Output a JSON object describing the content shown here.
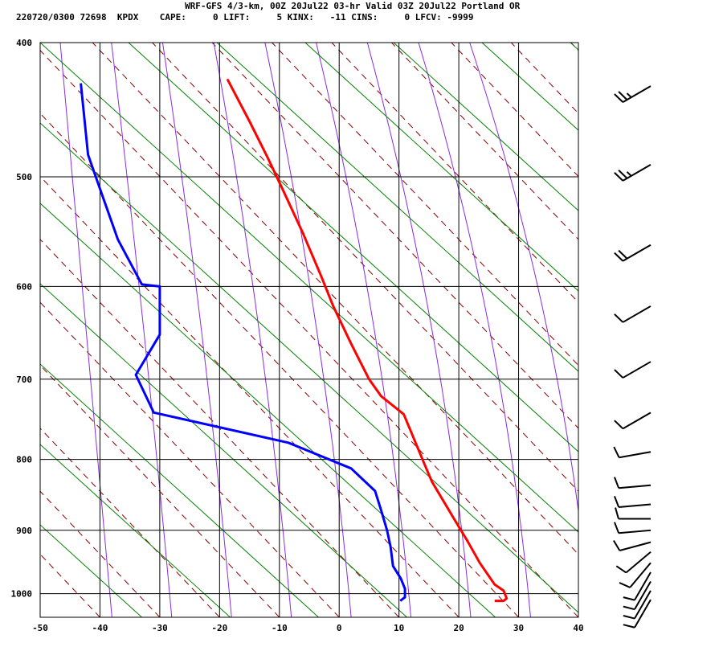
{
  "header": {
    "title": "WRF-GFS 4/3-km, 00Z 20Jul22 03-hr Valid 03Z 20Jul22 Portland OR",
    "indices": "220720/0300 72698  KPDX    CAPE:     0 LIFT:     5 KINX:   -11 CINS:     0 LFCV: -9999"
  },
  "chart_data": {
    "type": "line",
    "title": "WRF-GFS 4/3-km, 00Z 20Jul22 03-hr Valid 03Z 20Jul22 Portland OR",
    "xlabel": "",
    "ylabel": "",
    "x_ticks": [
      "-50",
      "-40",
      "-30",
      "-20",
      "-10",
      "0",
      "10",
      "20",
      "30",
      "40"
    ],
    "y_ticks": [
      "400",
      "500",
      "600",
      "700",
      "800",
      "900",
      "1000"
    ],
    "xlim": [
      -50,
      40
    ],
    "ylim_pressure": [
      1040,
      400
    ],
    "grid": true,
    "series": [
      {
        "color": "#ff0000",
        "points": [
          [
            -18.7,
            425
          ],
          [
            -15,
            456
          ],
          [
            -12,
            484
          ],
          [
            -9.5,
            510
          ],
          [
            -6,
            550
          ],
          [
            -3,
            590
          ],
          [
            -1,
            620
          ],
          [
            2,
            660
          ],
          [
            5,
            700
          ],
          [
            7,
            720
          ],
          [
            10.8,
            742
          ],
          [
            14.2,
            805
          ],
          [
            15.5,
            830
          ],
          [
            19,
            880
          ],
          [
            21.5,
            917
          ],
          [
            23.5,
            950
          ],
          [
            26,
            985
          ],
          [
            27.5,
            995
          ],
          [
            28,
            1008
          ],
          [
            27.5,
            1012
          ],
          [
            26,
            1012
          ]
        ]
      },
      {
        "color": "#0000ff",
        "points": [
          [
            -43.2,
            428
          ],
          [
            -42,
            482
          ],
          [
            -40,
            510
          ],
          [
            -37,
            555
          ],
          [
            -33,
            598
          ],
          [
            -30,
            600
          ],
          [
            -30,
            650
          ],
          [
            -34,
            695
          ],
          [
            -31,
            740
          ],
          [
            -8.5,
            778
          ],
          [
            2,
            812
          ],
          [
            6,
            843
          ],
          [
            7,
            870
          ],
          [
            8,
            900
          ],
          [
            8.6,
            925
          ],
          [
            9,
            955
          ],
          [
            10.3,
            975
          ],
          [
            11,
            992
          ],
          [
            11,
            1006
          ],
          [
            10.2,
            1012
          ]
        ]
      }
    ],
    "background_lines": {
      "isotherm_color": "#000000",
      "dry_adiabat_color": "#8b0000",
      "moist_adiabat_color": "#8a2be2",
      "mixing_ratio_color": "#008000"
    },
    "wind_barbs": [
      {
        "pressure": 430,
        "direction": 240,
        "speed": 25
      },
      {
        "pressure": 490,
        "direction": 240,
        "speed": 25
      },
      {
        "pressure": 560,
        "direction": 240,
        "speed": 20
      },
      {
        "pressure": 620,
        "direction": 240,
        "speed": 10
      },
      {
        "pressure": 680,
        "direction": 240,
        "speed": 10
      },
      {
        "pressure": 740,
        "direction": 240,
        "speed": 10
      },
      {
        "pressure": 790,
        "direction": 260,
        "speed": 10
      },
      {
        "pressure": 835,
        "direction": 265,
        "speed": 10
      },
      {
        "pressure": 862,
        "direction": 265,
        "speed": 10
      },
      {
        "pressure": 883,
        "direction": 270,
        "speed": 10
      },
      {
        "pressure": 900,
        "direction": 265,
        "speed": 10
      },
      {
        "pressure": 918,
        "direction": 255,
        "speed": 10
      },
      {
        "pressure": 933,
        "direction": 230,
        "speed": 10
      },
      {
        "pressure": 950,
        "direction": 220,
        "speed": 10
      },
      {
        "pressure": 965,
        "direction": 210,
        "speed": 10
      },
      {
        "pressure": 980,
        "direction": 210,
        "speed": 10
      },
      {
        "pressure": 995,
        "direction": 210,
        "speed": 10
      },
      {
        "pressure": 1010,
        "direction": 210,
        "speed": 10
      }
    ]
  }
}
